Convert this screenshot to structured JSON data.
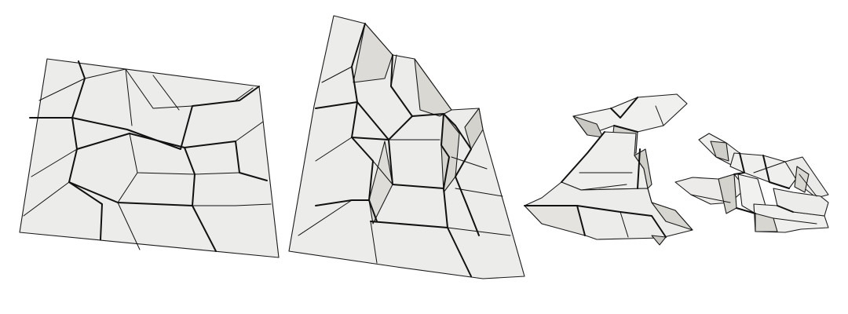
{
  "figure": {
    "stages": [
      {
        "id": "stage-1",
        "state": "flat"
      },
      {
        "id": "stage-2",
        "state": "partially-folded"
      },
      {
        "id": "stage-3",
        "state": "mostly-folded"
      },
      {
        "id": "stage-4",
        "state": "nearly-collapsed"
      }
    ]
  },
  "colors": {
    "background": "#ffffff",
    "paper": "#ececea",
    "paper_light": "#f2f2f0",
    "paper_shade": "#dddcd8",
    "paper_dark": "#c9c8c3",
    "crease": "#111111"
  }
}
